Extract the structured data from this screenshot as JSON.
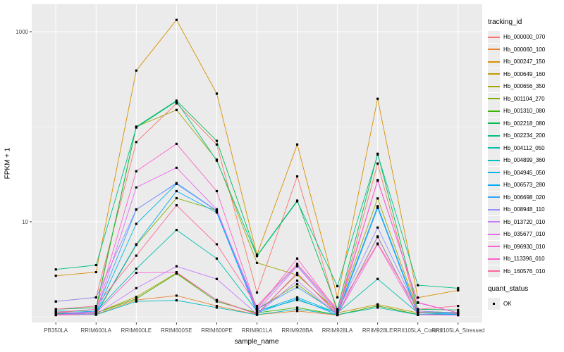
{
  "colors": {
    "panel_bg": "#EBEBEB",
    "grid": "#FFFFFF",
    "axis_text": "#4D4D4D",
    "tick_mark": "#333333",
    "point": "#000000",
    "legend_key_bg": "#ECECEC"
  },
  "chart_data": {
    "type": "line",
    "title": "",
    "xlabel": "sample_name",
    "ylabel": "FPKM + 1",
    "y_scale": "log10",
    "grid": true,
    "legend_position": "right",
    "y_ticks": [
      {
        "label": "1000",
        "value": 1000
      },
      {
        "label": "10",
        "value": 10
      }
    ],
    "y_minor_breaks": [
      100,
      1
    ],
    "ylim": [
      1,
      1400
    ],
    "categories": [
      "PB350LA",
      "RRIM600LA",
      "RRIM600LE",
      "RRIM600SE",
      "RRIM600PE",
      "RRIM901LA",
      "RRIM928BA",
      "RRIM928LA",
      "RRIM928LE",
      "RRII105LA_Control",
      "RRII105LA_Stressed"
    ],
    "legend_title": "tracking_id",
    "quant_legend": {
      "title": "quant_status",
      "items": [
        {
          "label": "OK"
        }
      ]
    },
    "series": [
      {
        "name": "Hb_000000_070",
        "color": "#F8766D",
        "values": [
          1.45,
          1.6,
          69,
          176,
          65,
          1.8,
          30,
          1.1,
          41,
          1.12,
          1.1
        ]
      },
      {
        "name": "Hb_000060_100",
        "color": "#EA8331",
        "values": [
          1.04,
          1.06,
          1.5,
          1.67,
          1.3,
          1.05,
          1.15,
          1.04,
          1.3,
          1.05,
          1.08
        ]
      },
      {
        "name": "Hb_000247_150",
        "color": "#D89000",
        "values": [
          2.7,
          2.95,
          390,
          1330,
          223,
          4.5,
          65,
          1.6,
          197,
          1.59,
          1.9
        ]
      },
      {
        "name": "Hb_000649_160",
        "color": "#C09B00",
        "values": [
          1.06,
          1.1,
          1.62,
          2.9,
          1.5,
          1.08,
          2.8,
          1.1,
          1.35,
          1.1,
          1.12
        ]
      },
      {
        "name": "Hb_000656_350",
        "color": "#A3A500",
        "values": [
          1.1,
          1.2,
          100,
          150,
          45,
          3.7,
          2.75,
          1.15,
          17.6,
          1.15,
          1.1
        ]
      },
      {
        "name": "Hb_001104_270",
        "color": "#7CAE00",
        "values": [
          1.05,
          1.07,
          5.7,
          17.7,
          13.2,
          1.2,
          2.2,
          1.06,
          7,
          1.06,
          1.05
        ]
      },
      {
        "name": "Hb_001310_080",
        "color": "#39B600",
        "values": [
          1.08,
          1.1,
          1.55,
          2.85,
          1.45,
          1.1,
          1.25,
          1.05,
          1.3,
          1.06,
          1.05
        ]
      },
      {
        "name": "Hb_002218_080",
        "color": "#00BB4E",
        "values": [
          1.2,
          1.25,
          100,
          188,
          71,
          4.4,
          16.7,
          1.2,
          52,
          1.2,
          1.18
        ]
      },
      {
        "name": "Hb_002234_200",
        "color": "#00C087",
        "values": [
          3.15,
          3.5,
          98,
          185,
          44,
          4.35,
          16.4,
          2.1,
          51,
          2.15,
          2.0
        ]
      },
      {
        "name": "Hb_004112_050",
        "color": "#00C0AF",
        "values": [
          1.15,
          1.14,
          3.2,
          8.2,
          4.1,
          1.15,
          1.5,
          1.1,
          2.5,
          1.1,
          1.1
        ]
      },
      {
        "name": "Hb_004899_360",
        "color": "#00BFC4",
        "values": [
          1.1,
          1.05,
          1.45,
          1.49,
          1.25,
          1.05,
          1.2,
          1.05,
          1.25,
          1.05,
          1.05
        ]
      },
      {
        "name": "Hb_004945_050",
        "color": "#00B8E7",
        "values": [
          1.05,
          1.1,
          9.5,
          25,
          13,
          1.14,
          1.6,
          1.1,
          14.3,
          1.1,
          1.06
        ]
      },
      {
        "name": "Hb_006573_280",
        "color": "#00ACFC",
        "values": [
          1.1,
          1.09,
          5.8,
          21,
          12.5,
          1.1,
          1.55,
          1.05,
          14,
          1.06,
          1.05
        ]
      },
      {
        "name": "Hb_006698_020",
        "color": "#35A2FF",
        "values": [
          1.06,
          1.15,
          13.4,
          25.5,
          13.1,
          1.2,
          2.05,
          1.1,
          14.6,
          1.1,
          1.09
        ]
      },
      {
        "name": "Hb_008948_110",
        "color": "#9590FF",
        "values": [
          1.45,
          1.6,
          13.5,
          25.2,
          13,
          1.25,
          3.5,
          1.15,
          8.7,
          1.15,
          1.1
        ]
      },
      {
        "name": "Hb_013720_010",
        "color": "#C77CFF",
        "values": [
          1.05,
          1.06,
          2.0,
          3.4,
          2.5,
          1.07,
          2.4,
          1.05,
          6.9,
          1.05,
          1.04
        ]
      },
      {
        "name": "Hb_035677_010",
        "color": "#E76BF3",
        "values": [
          1.1,
          1.12,
          23,
          37,
          13.5,
          1.15,
          3.4,
          1.1,
          27,
          1.4,
          1.1
        ]
      },
      {
        "name": "Hb_096930_010",
        "color": "#FA62DB",
        "values": [
          1.05,
          1.1,
          2.9,
          2.95,
          1.5,
          1.06,
          2.9,
          1.05,
          5.8,
          1.05,
          1.04
        ]
      },
      {
        "name": "Hb_113396_010",
        "color": "#FF61CC",
        "values": [
          1.12,
          1.2,
          34,
          66,
          21,
          1.2,
          4.1,
          1.15,
          27.5,
          1.42,
          1.1
        ]
      },
      {
        "name": "Hb_160576_010",
        "color": "#FF6A98",
        "values": [
          1.2,
          1.3,
          4.4,
          14.9,
          5.8,
          1.3,
          3.6,
          1.2,
          5.9,
          1.2,
          1.3
        ]
      }
    ]
  }
}
